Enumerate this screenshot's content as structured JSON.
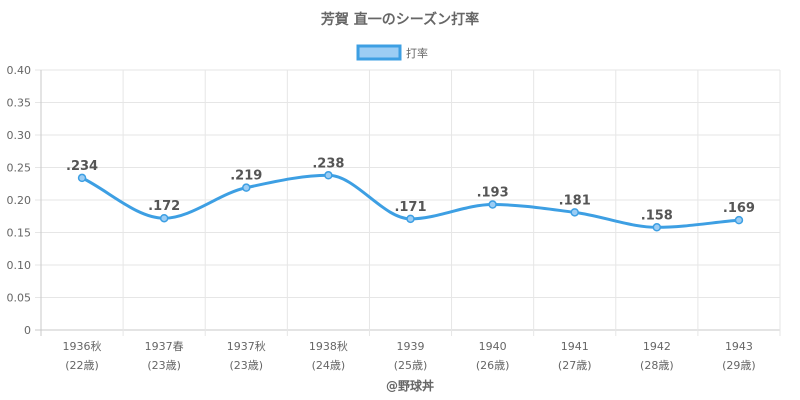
{
  "chart_data": {
    "type": "line",
    "title": "芳賀 直一のシーズン打率",
    "legend": {
      "label": "打率",
      "position": "top"
    },
    "color": "#3d9fe3",
    "fill_color": "#9ccdf4",
    "categories": [
      [
        "1936秋",
        "(22歳)"
      ],
      [
        "1937春",
        "(23歳)"
      ],
      [
        "1937秋",
        "(23歳)"
      ],
      [
        "1938秋",
        "(24歳)"
      ],
      [
        "1939",
        "(25歳)"
      ],
      [
        "1940",
        "(26歳)"
      ],
      [
        "1941",
        "(27歳)"
      ],
      [
        "1942",
        "(28歳)"
      ],
      [
        "1943",
        "(29歳)"
      ]
    ],
    "series": [
      {
        "name": "打率",
        "values": [
          0.234,
          0.172,
          0.219,
          0.238,
          0.171,
          0.193,
          0.181,
          0.158,
          0.169
        ],
        "labels": [
          ".234",
          ".172",
          ".219",
          ".238",
          ".171",
          ".193",
          ".181",
          ".158",
          ".169"
        ]
      }
    ],
    "ylim": [
      0,
      0.4
    ],
    "yticks": [
      "0",
      "0.05",
      "0.10",
      "0.15",
      "0.20",
      "0.25",
      "0.30",
      "0.35",
      "0.40"
    ],
    "grid": true
  },
  "credit": "@野球丼"
}
